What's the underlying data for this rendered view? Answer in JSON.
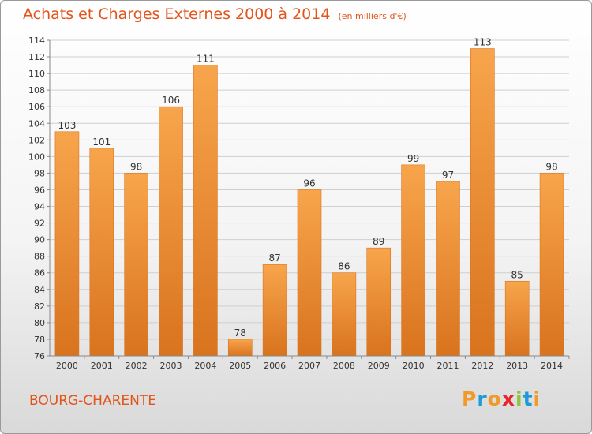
{
  "header": {
    "title": "Achats et Charges Externes 2000 à 2014",
    "unit": "(en milliers d'€)"
  },
  "footer": {
    "location": "BOURG-CHARENTE",
    "logo_text": "Proxiti"
  },
  "colors": {
    "title": "#e2541a",
    "bar_top": "#f7a54c",
    "bar_bottom": "#d9731e",
    "grid": "#cfcfcf",
    "axis": "#888888",
    "logo": [
      "#f09a2a",
      "#1d9bd7",
      "#f09a2a",
      "#e8262e",
      "#8cc63f",
      "#1d9bd7",
      "#f09a2a"
    ]
  },
  "chart_data": {
    "type": "bar",
    "title": "Achats et Charges Externes 2000 à 2014",
    "subtitle": "(en milliers d'€)",
    "categories": [
      "2000",
      "2001",
      "2002",
      "2003",
      "2004",
      "2005",
      "2006",
      "2007",
      "2008",
      "2009",
      "2010",
      "2011",
      "2012",
      "2013",
      "2014"
    ],
    "values": [
      103,
      101,
      98,
      106,
      111,
      78,
      87,
      96,
      86,
      89,
      99,
      97,
      113,
      85,
      98
    ],
    "data_labels": [
      "103",
      "101",
      "98",
      "106",
      "111",
      "78",
      "87",
      "96",
      "86",
      "89",
      "99",
      "97",
      "113",
      "85",
      "98"
    ],
    "yticks": [
      "76",
      "78",
      "80",
      "82",
      "84",
      "86",
      "88",
      "90",
      "92",
      "94",
      "96",
      "98",
      "100",
      "102",
      "104",
      "106",
      "108",
      "110",
      "112",
      "114"
    ],
    "ylim": [
      76,
      114
    ],
    "xlabel": "",
    "ylabel": "",
    "grid": true,
    "legend": "none"
  }
}
